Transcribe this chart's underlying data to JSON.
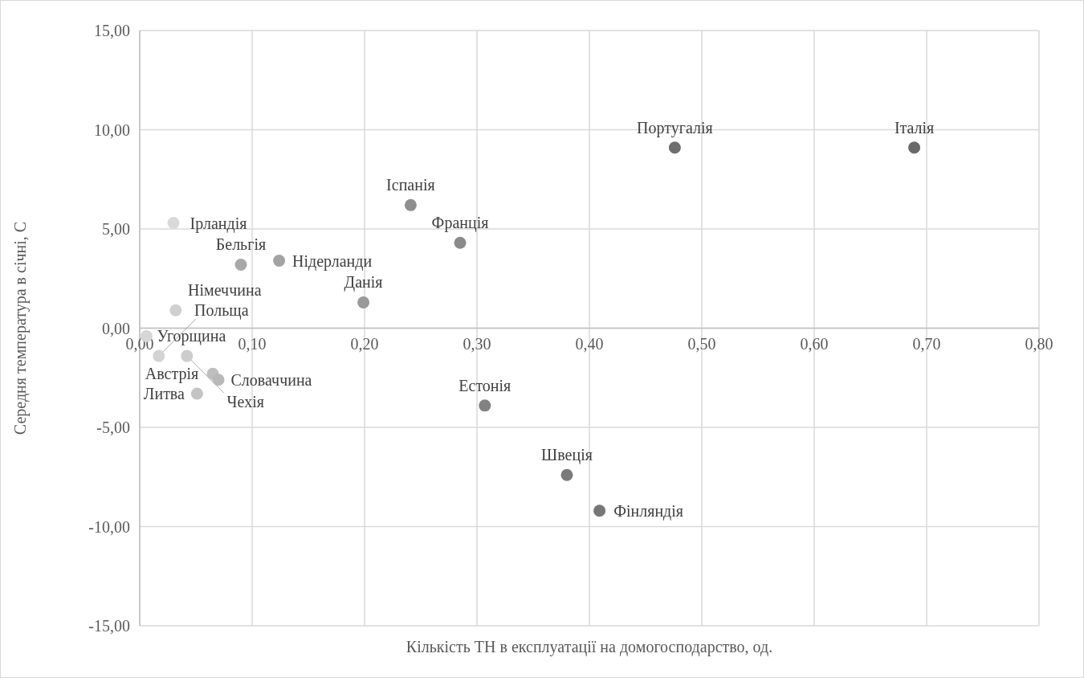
{
  "chart_data": {
    "type": "scatter",
    "xlabel": "Кількість ТН в експлуатації на домогосподарство, од.",
    "ylabel": "Середня температура в січні, С",
    "xlim": [
      0,
      0.8
    ],
    "xticks": [
      {
        "value": 0,
        "label": "0,00"
      },
      {
        "value": 0.1,
        "label": "0,10"
      },
      {
        "value": 0.2,
        "label": "0,20"
      },
      {
        "value": 0.3,
        "label": "0,30"
      },
      {
        "value": 0.4,
        "label": "0,40"
      },
      {
        "value": 0.5,
        "label": "0,50"
      },
      {
        "value": 0.6,
        "label": "0,60"
      },
      {
        "value": 0.7,
        "label": "0,70"
      },
      {
        "value": 0.8,
        "label": "0,80"
      }
    ],
    "ylim": [
      -15,
      15
    ],
    "yticks": [
      {
        "value": -15,
        "label": "-15,00"
      },
      {
        "value": -10,
        "label": "-10,00"
      },
      {
        "value": -5,
        "label": "-5,00"
      },
      {
        "value": 0,
        "label": "0,00"
      },
      {
        "value": 5,
        "label": "5,00"
      },
      {
        "value": 10,
        "label": "10,00"
      },
      {
        "value": 15,
        "label": "15,00"
      }
    ],
    "grid": true,
    "marker": "circle",
    "series": [
      {
        "name": "Ірландія",
        "color": "#d9d9d9",
        "x": [
          0.03
        ],
        "values": [
          5.3
        ]
      },
      {
        "name": "Угорщина",
        "color": "#d6d6d6",
        "x": [
          0.006
        ],
        "values": [
          -0.4
        ]
      },
      {
        "name": "Польща",
        "color": "#d3d3d3",
        "x": [
          0.017
        ],
        "values": [
          -1.4
        ]
      },
      {
        "name": "Німеччина",
        "color": "#cfcfcf",
        "x": [
          0.032
        ],
        "values": [
          0.9
        ]
      },
      {
        "name": "Чехія",
        "color": "#cccccc",
        "x": [
          0.042
        ],
        "values": [
          -1.4
        ]
      },
      {
        "name": "Литва",
        "color": "#c4c4c4",
        "x": [
          0.051
        ],
        "values": [
          -3.3
        ]
      },
      {
        "name": "Австрія",
        "color": "#bebebe",
        "x": [
          0.065
        ],
        "values": [
          -2.3
        ]
      },
      {
        "name": "Словаччина",
        "color": "#b8b8b8",
        "x": [
          0.07
        ],
        "values": [
          -2.6
        ]
      },
      {
        "name": "Бельгія",
        "color": "#a8a8a8",
        "x": [
          0.09
        ],
        "values": [
          3.2
        ]
      },
      {
        "name": "Нідерланди",
        "color": "#a3a3a3",
        "x": [
          0.124
        ],
        "values": [
          3.4
        ]
      },
      {
        "name": "Данія",
        "color": "#9a9a9a",
        "x": [
          0.199
        ],
        "values": [
          1.3
        ]
      },
      {
        "name": "Іспанія",
        "color": "#8f8f8f",
        "x": [
          0.241
        ],
        "values": [
          6.2
        ]
      },
      {
        "name": "Франція",
        "color": "#8a8a8a",
        "x": [
          0.285
        ],
        "values": [
          4.3
        ]
      },
      {
        "name": "Естонія",
        "color": "#828282",
        "x": [
          0.307
        ],
        "values": [
          -3.9
        ]
      },
      {
        "name": "Швеція",
        "color": "#7a7a7a",
        "x": [
          0.38
        ],
        "values": [
          -7.4
        ]
      },
      {
        "name": "Фінляндія",
        "color": "#767676",
        "x": [
          0.409
        ],
        "values": [
          -9.2
        ]
      },
      {
        "name": "Португалія",
        "color": "#6e6e6e",
        "x": [
          0.476
        ],
        "values": [
          9.1
        ]
      },
      {
        "name": "Італія",
        "color": "#696969",
        "x": [
          0.689
        ],
        "values": [
          9.1
        ]
      }
    ]
  }
}
